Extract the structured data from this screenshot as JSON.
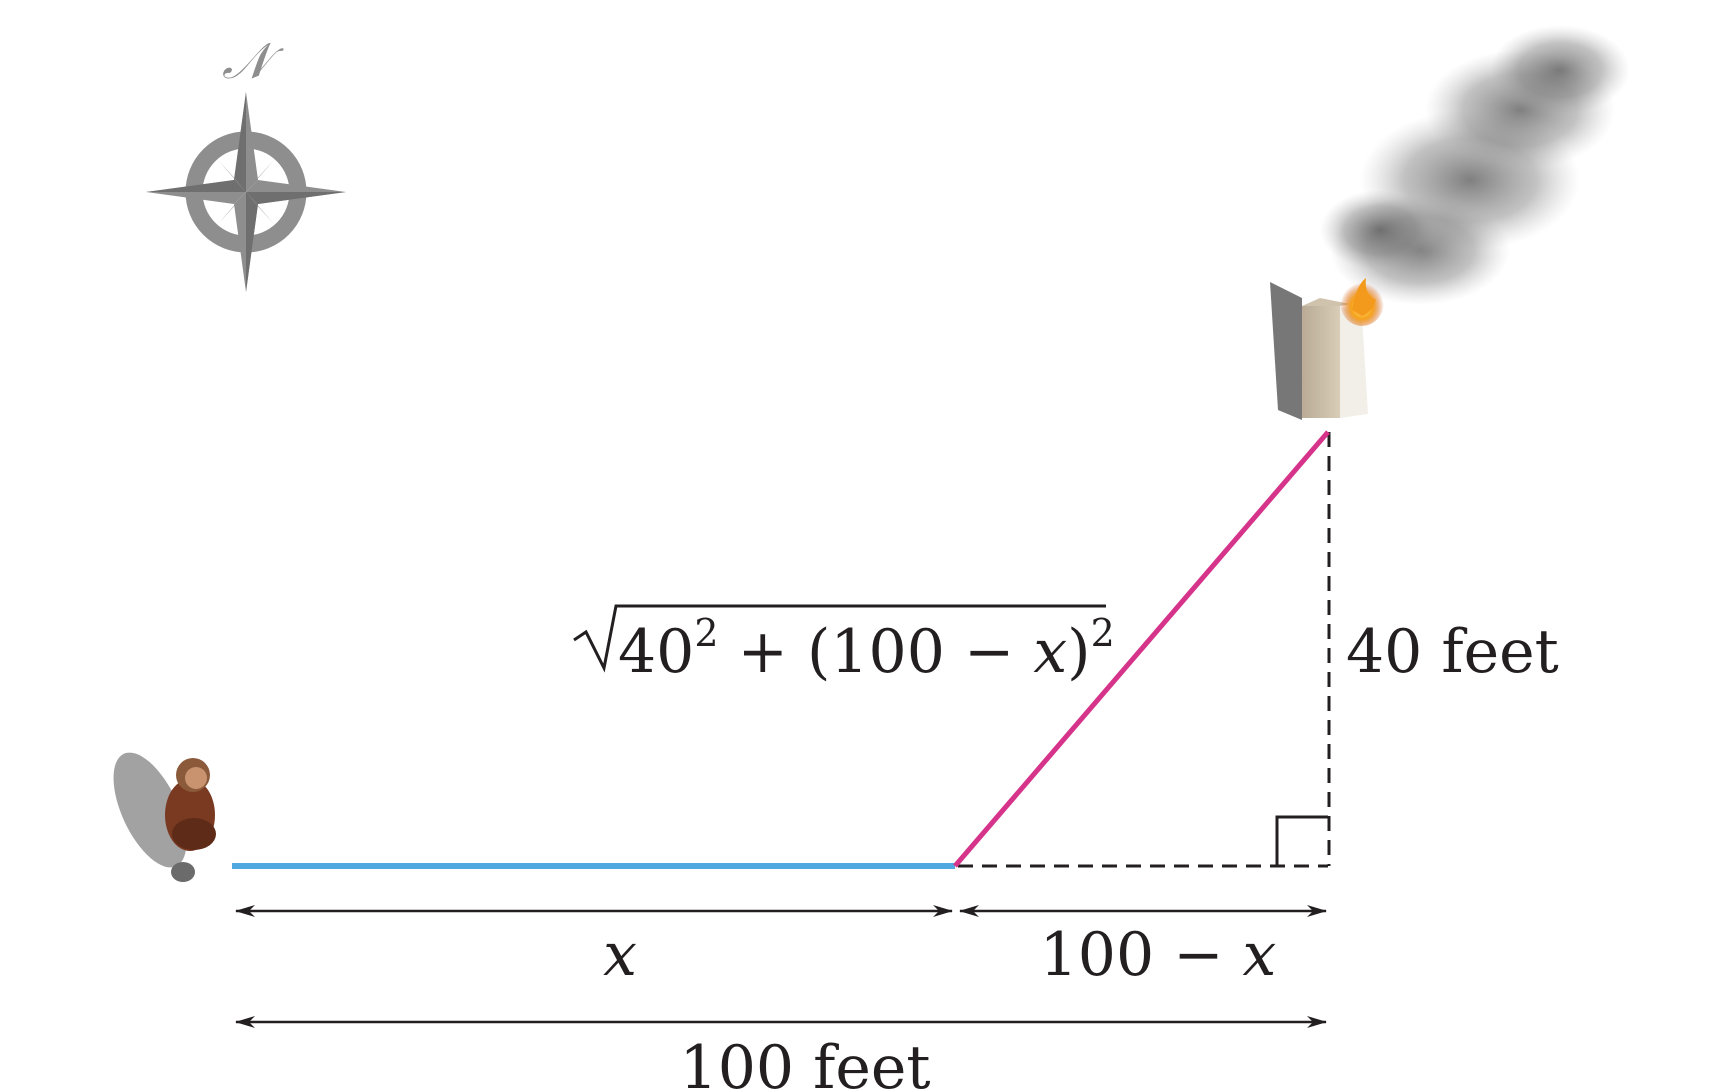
{
  "compass": {
    "north_label": "𝒩"
  },
  "labels": {
    "hypotenuse": {
      "base": "40",
      "exp1": "2",
      "mid": " + (100 − ",
      "var": "x",
      "close": ")",
      "exp2": "2"
    },
    "height": "40 feet",
    "x_segment": "x",
    "rest_segment": {
      "num": "100 − ",
      "var": "x"
    },
    "total": "100 feet"
  },
  "colors": {
    "walk_path": "#4fa8e0",
    "swim_path": "#d6338a",
    "lines": "#231f20",
    "compass": "#8e8e8e"
  }
}
